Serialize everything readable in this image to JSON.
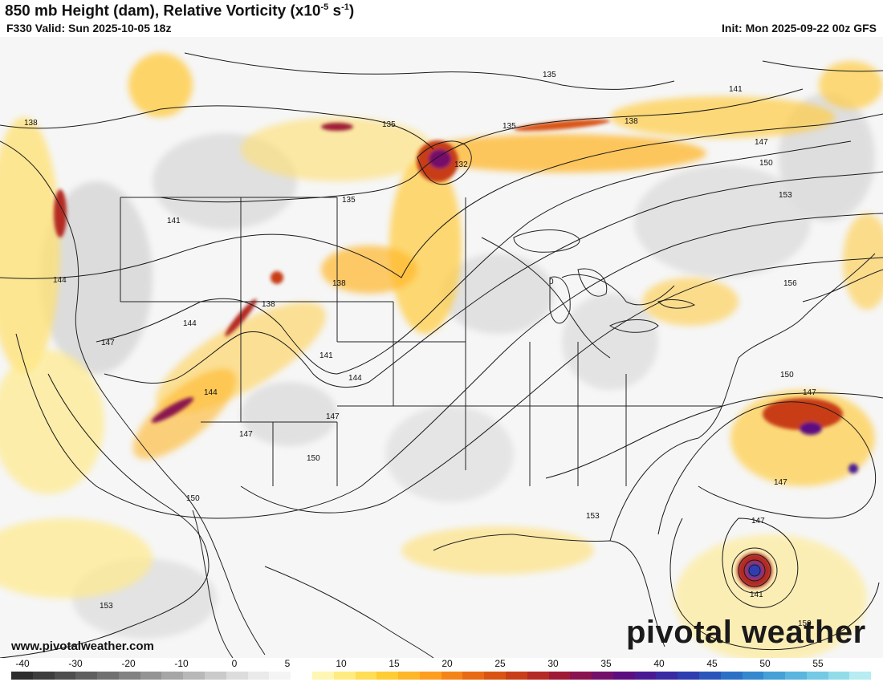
{
  "header": {
    "title_main": "850 mb Height (dam), Relative Vorticity (x10",
    "title_exp": "-5",
    "title_mid": " s",
    "title_exp2": "-1",
    "title_end": ")",
    "valid": "F330 Valid: Sun 2025-10-05 18z",
    "init": "Init: Mon 2025-09-22 00z GFS"
  },
  "footer": {
    "website": "www.pivotalweather.com",
    "brand": "pivotal weather"
  },
  "colorbar": {
    "labels": [
      "-40",
      "-30",
      "-20",
      "-10",
      "0",
      "5",
      "10",
      "15",
      "20",
      "25",
      "30",
      "35",
      "40",
      "45",
      "50",
      "55"
    ],
    "colors": [
      "#2d2d2d",
      "#3d3d3d",
      "#4e4e4e",
      "#5f5f5f",
      "#707070",
      "#828282",
      "#949494",
      "#a6a6a6",
      "#b8b8b8",
      "#cacaca",
      "#dcdcdc",
      "#eaeaea",
      "#f4f4f4",
      "#ffffff",
      "#fff6b3",
      "#ffeb80",
      "#ffdd55",
      "#ffcc33",
      "#ffb628",
      "#ff9e1e",
      "#f58418",
      "#e86a14",
      "#d95412",
      "#c83e18",
      "#b42a24",
      "#9e1a36",
      "#8a1250",
      "#74106a",
      "#5c0e80",
      "#4a1a94",
      "#3a2aa4",
      "#2e3eb0",
      "#2a56bc",
      "#2c70c6",
      "#3488ce",
      "#44a0d6",
      "#5ab6de",
      "#74cae4",
      "#92dcea",
      "#b6ecf2"
    ]
  },
  "map": {
    "contour_labels": [
      "135",
      "138",
      "141",
      "144",
      "147",
      "150",
      "153",
      "156",
      "132",
      "135",
      "135",
      "135",
      "138",
      "138",
      "138",
      "141",
      "141",
      "141",
      "144",
      "144",
      "144",
      "144",
      "147",
      "147",
      "147",
      "147",
      "147",
      "147",
      "147",
      "150",
      "150",
      "150",
      "150",
      "150",
      "153",
      "153",
      "141",
      "0"
    ]
  },
  "colors": {
    "contour": "#1a1a1a",
    "boundary": "#222222",
    "vort_low": "#ffe98a",
    "vort_mid": "#f59a1e",
    "vort_high": "#b01e50",
    "vort_max": "#4a1a94"
  }
}
